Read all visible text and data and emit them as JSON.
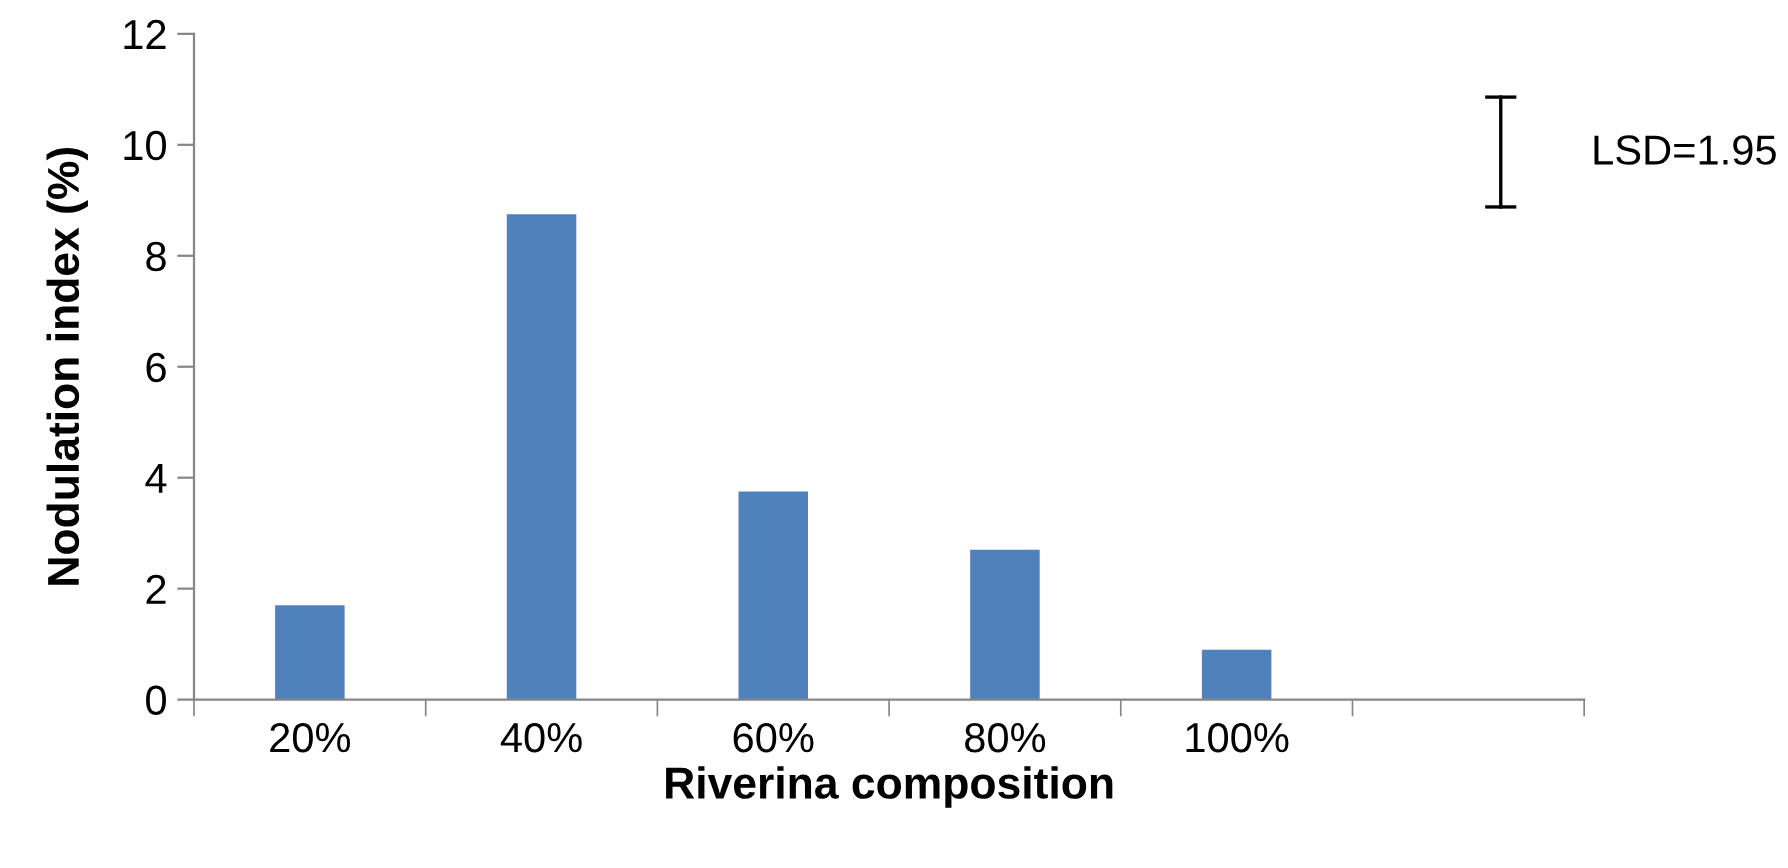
{
  "chart_data": {
    "type": "bar",
    "xlabel": "Riverina composition",
    "ylabel": "Nodulation index (%)",
    "categories": [
      "20%",
      "40%",
      "60%",
      "80%",
      "100%",
      null
    ],
    "values": [
      1.7,
      8.75,
      3.75,
      2.7,
      0.9,
      null
    ],
    "color": "#4f81bd",
    "ylim": [
      0,
      12
    ],
    "yticks": [
      0,
      2,
      4,
      6,
      8,
      10,
      12
    ],
    "grid": false,
    "legend": false,
    "annotations": [
      "LSD=1.95"
    ]
  }
}
